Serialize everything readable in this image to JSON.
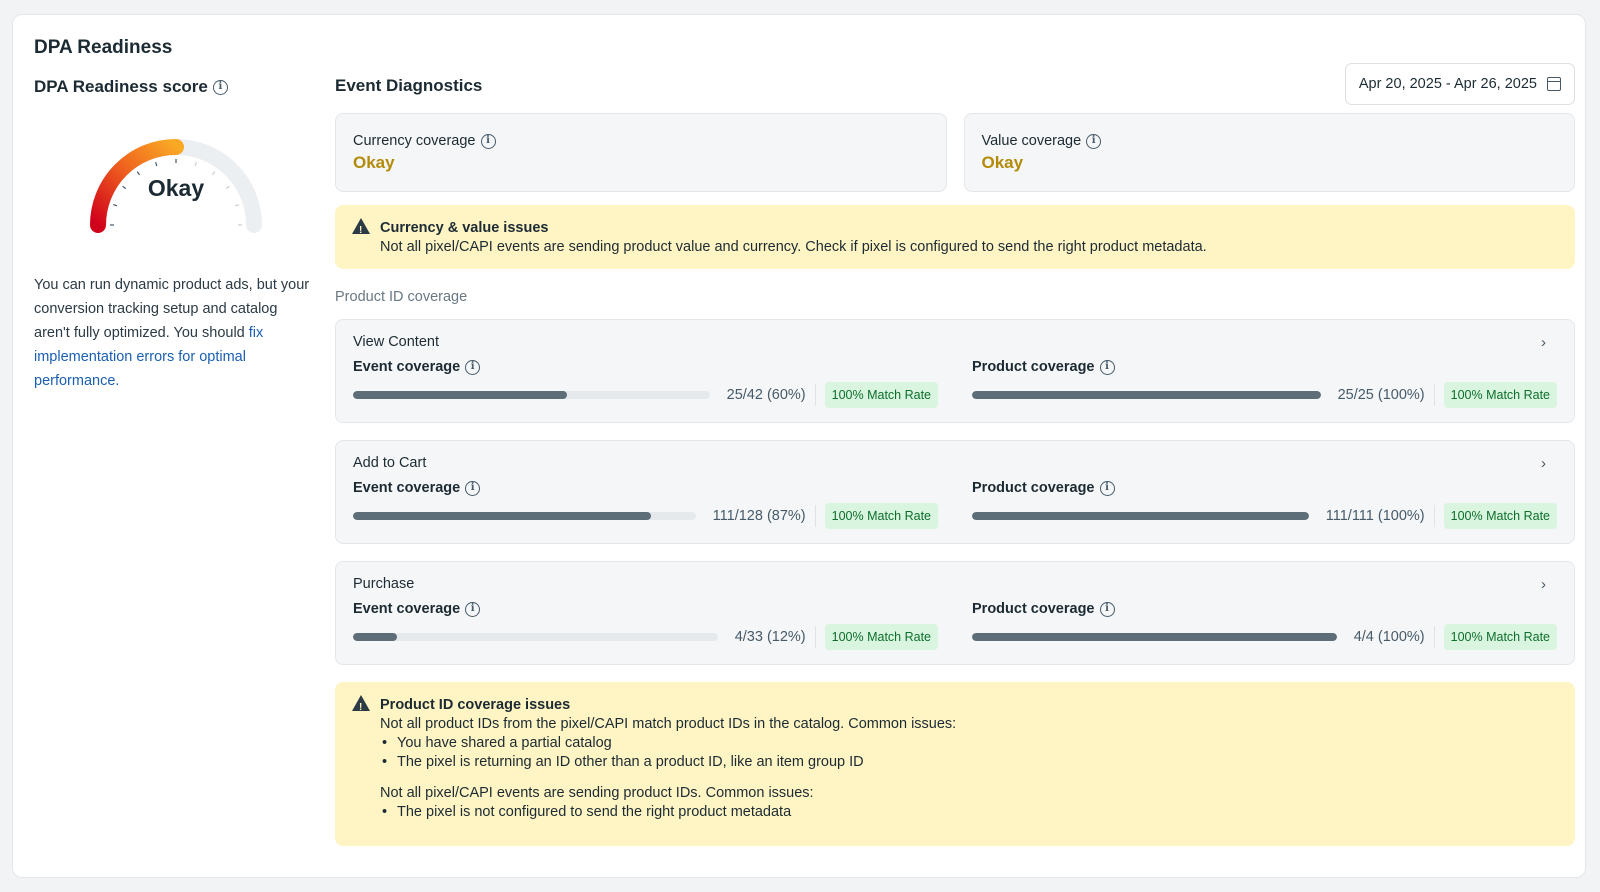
{
  "page": {
    "title": "DPA Readiness"
  },
  "score": {
    "title": "DPA Readiness score",
    "value_label": "Okay",
    "level": 0.5,
    "description_prefix": "You can run dynamic product ads, but your conversion tracking setup and catalog aren't fully optimized. You should ",
    "description_link": "fix implementation errors for optimal performance."
  },
  "diagnostics": {
    "title": "Event Diagnostics",
    "date_range": "Apr 20, 2025 - Apr 26, 2025",
    "currency": {
      "label": "Currency coverage",
      "value": "Okay"
    },
    "value": {
      "label": "Value coverage",
      "value": "Okay"
    },
    "currency_warning": {
      "title": "Currency & value issues",
      "text": "Not all pixel/CAPI events are sending product value and currency. Check if pixel is configured to send the right product metadata."
    },
    "product_id_label": "Product ID coverage",
    "events": [
      {
        "name": "View Content",
        "event_label": "Event coverage",
        "event_text": "25/42 (60%)",
        "event_pct": 60,
        "event_badge": "100% Match Rate",
        "product_label": "Product coverage",
        "product_text": "25/25 (100%)",
        "product_pct": 100,
        "product_badge": "100% Match Rate"
      },
      {
        "name": "Add to Cart",
        "event_label": "Event coverage",
        "event_text": "111/128 (87%)",
        "event_pct": 87,
        "event_badge": "100% Match Rate",
        "product_label": "Product coverage",
        "product_text": "111/111 (100%)",
        "product_pct": 100,
        "product_badge": "100% Match Rate"
      },
      {
        "name": "Purchase",
        "event_label": "Event coverage",
        "event_text": "4/33 (12%)",
        "event_pct": 12,
        "event_badge": "100% Match Rate",
        "product_label": "Product coverage",
        "product_text": "4/4 (100%)",
        "product_pct": 100,
        "product_badge": "100% Match Rate"
      }
    ],
    "product_warning": {
      "title": "Product ID coverage issues",
      "text1": "Not all product IDs from the pixel/CAPI match product IDs in the catalog. Common issues:",
      "bullets1": [
        "You have shared a partial catalog",
        "The pixel is returning an ID other than a product ID, like an item group ID"
      ],
      "text2": "Not all pixel/CAPI events are sending product IDs. Common issues:",
      "bullets2": [
        "The pixel is not configured to send the right product metadata"
      ]
    }
  },
  "colors": {
    "okay": "#b38b08",
    "warning_bg": "#fff4c4",
    "badge_bg": "#d9f5df",
    "bar_fill": "#5e6e78"
  }
}
